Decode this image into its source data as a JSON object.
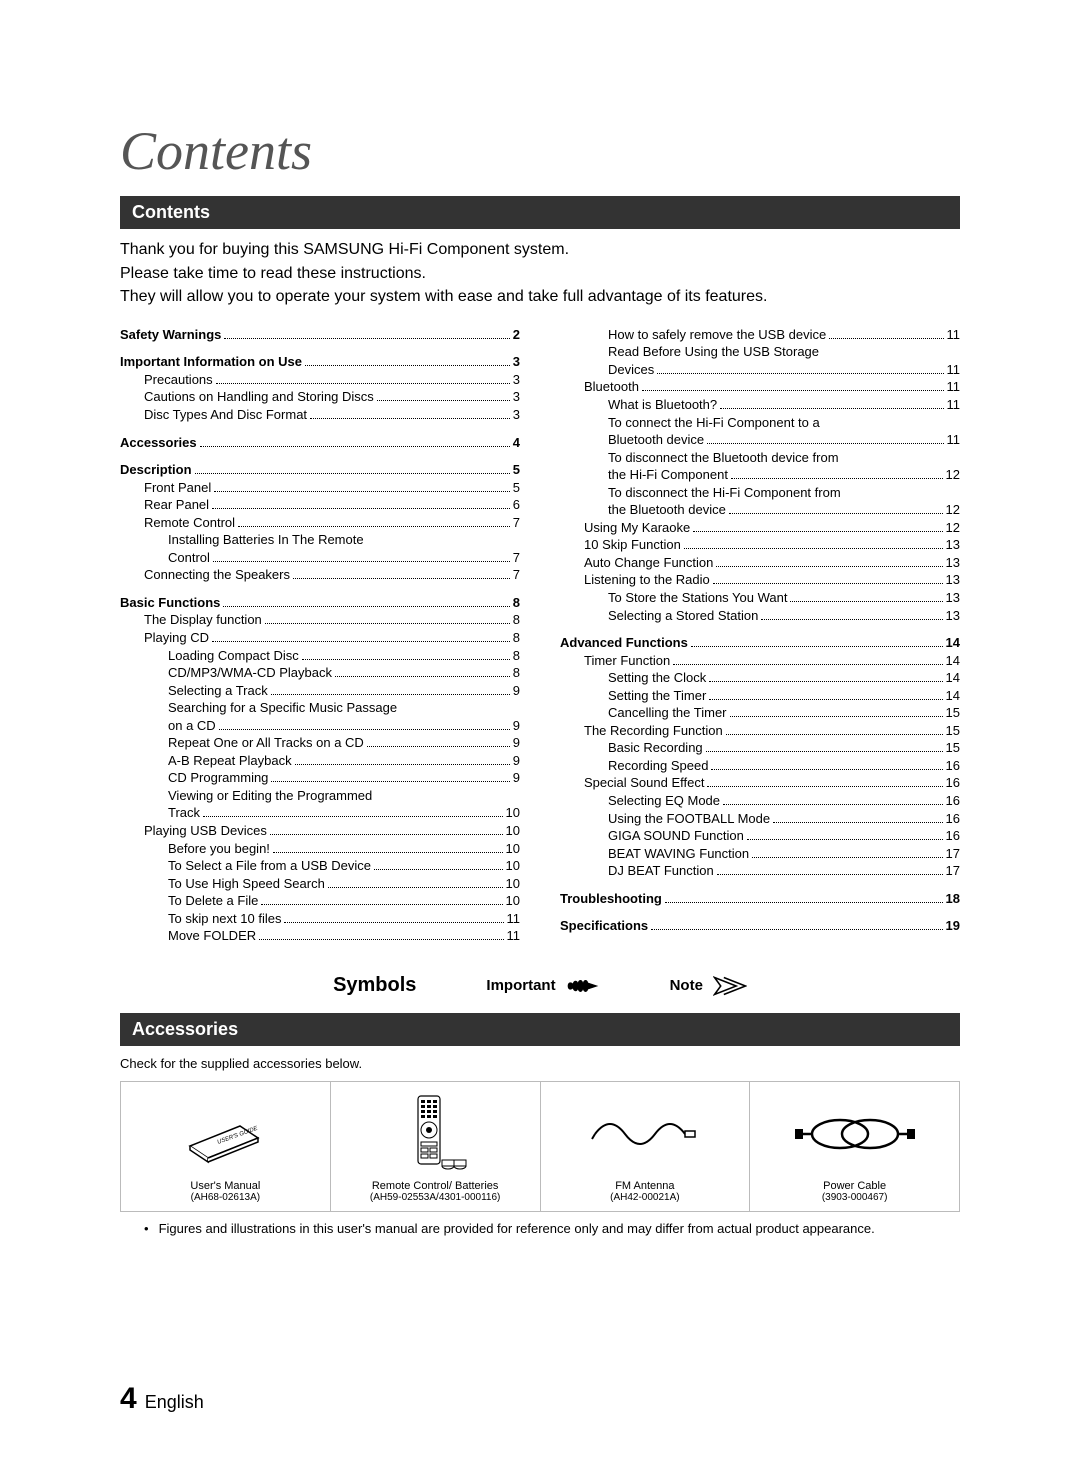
{
  "page_title": "Contents",
  "section_contents_label": "Contents",
  "intro": {
    "l1": "Thank you for buying this SAMSUNG Hi-Fi Component system.",
    "l2": "Please take time to read these instructions.",
    "l3": "They will allow you to operate your system with ease and take full advantage of its features."
  },
  "toc_left": [
    {
      "ind": 0,
      "label": "Safety Warnings",
      "page": "2"
    },
    {
      "ind": 0,
      "label": "Important Information on Use",
      "page": "3"
    },
    {
      "ind": 1,
      "label": "Precautions",
      "page": "3"
    },
    {
      "ind": 1,
      "label": "Cautions on Handling and Storing Discs",
      "page": "3"
    },
    {
      "ind": 1,
      "label": "Disc Types And Disc Format",
      "page": "3"
    },
    {
      "ind": 0,
      "label": "Accessories",
      "page": "4"
    },
    {
      "ind": 0,
      "label": "Description",
      "page": "5"
    },
    {
      "ind": 1,
      "label": "Front Panel",
      "page": "5"
    },
    {
      "ind": 1,
      "label": "Rear Panel",
      "page": "6"
    },
    {
      "ind": 1,
      "label": "Remote Control",
      "page": "7"
    },
    {
      "ind": 2,
      "label": "Installing Batteries In The Remote",
      "nopage": true
    },
    {
      "ind": 2,
      "label": "Control",
      "page": "7"
    },
    {
      "ind": 1,
      "label": "Connecting the Speakers",
      "page": "7"
    },
    {
      "ind": 0,
      "label": "Basic Functions",
      "page": "8"
    },
    {
      "ind": 1,
      "label": "The Display function",
      "page": "8"
    },
    {
      "ind": 1,
      "label": "Playing CD",
      "page": "8"
    },
    {
      "ind": 2,
      "label": "Loading Compact Disc",
      "page": "8"
    },
    {
      "ind": 2,
      "label": "CD/MP3/WMA-CD Playback",
      "page": "8"
    },
    {
      "ind": 2,
      "label": "Selecting a Track",
      "page": "9"
    },
    {
      "ind": 2,
      "label": "Searching for a Specific Music Passage",
      "nopage": true
    },
    {
      "ind": 2,
      "label": "on a CD",
      "page": "9"
    },
    {
      "ind": 2,
      "label": "Repeat One or All Tracks on a CD",
      "page": "9"
    },
    {
      "ind": 2,
      "label": "A-B Repeat Playback",
      "page": "9"
    },
    {
      "ind": 2,
      "label": "CD Programming",
      "page": "9"
    },
    {
      "ind": 2,
      "label": "Viewing or Editing the Programmed",
      "nopage": true
    },
    {
      "ind": 2,
      "label": "Track",
      "page": "10"
    },
    {
      "ind": 1,
      "label": "Playing USB Devices",
      "page": "10"
    },
    {
      "ind": 2,
      "label": "Before you begin!",
      "page": "10"
    },
    {
      "ind": 2,
      "label": "To Select a File from a USB Device",
      "page": "10"
    },
    {
      "ind": 2,
      "label": "To Use High Speed Search",
      "page": "10"
    },
    {
      "ind": 2,
      "label": "To Delete a File",
      "page": "10"
    },
    {
      "ind": 2,
      "label": "To skip next 10 files",
      "page": "11"
    },
    {
      "ind": 2,
      "label": "Move FOLDER",
      "page": "11"
    }
  ],
  "toc_right": [
    {
      "ind": 2,
      "label": "How to safely remove the USB device",
      "page": "11"
    },
    {
      "ind": 2,
      "label": "Read Before Using the USB Storage",
      "nopage": true
    },
    {
      "ind": 2,
      "label": "Devices",
      "page": "11"
    },
    {
      "ind": 1,
      "label": "Bluetooth",
      "page": "11"
    },
    {
      "ind": 2,
      "label": "What is Bluetooth?",
      "page": "11"
    },
    {
      "ind": 2,
      "label": "To connect the Hi-Fi Component to a",
      "nopage": true
    },
    {
      "ind": 2,
      "label": "Bluetooth device",
      "page": "11"
    },
    {
      "ind": 2,
      "label": "To disconnect the Bluetooth device from",
      "nopage": true
    },
    {
      "ind": 2,
      "label": "the Hi-Fi Component",
      "page": "12"
    },
    {
      "ind": 2,
      "label": "To disconnect the Hi-Fi Component from",
      "nopage": true
    },
    {
      "ind": 2,
      "label": "the Bluetooth device",
      "page": "12"
    },
    {
      "ind": 1,
      "label": "Using My Karaoke",
      "page": "12"
    },
    {
      "ind": 1,
      "label": "10 Skip Function",
      "page": "13"
    },
    {
      "ind": 1,
      "label": "Auto Change Function",
      "page": "13"
    },
    {
      "ind": 1,
      "label": "Listening to the Radio",
      "page": "13"
    },
    {
      "ind": 2,
      "label": "To Store the Stations You Want",
      "page": "13"
    },
    {
      "ind": 2,
      "label": "Selecting a Stored Station",
      "page": "13"
    },
    {
      "ind": 0,
      "label": "Advanced Functions",
      "page": "14"
    },
    {
      "ind": 1,
      "label": "Timer Function",
      "page": "14"
    },
    {
      "ind": 2,
      "label": "Setting the Clock",
      "page": "14"
    },
    {
      "ind": 2,
      "label": "Setting the Timer",
      "page": "14"
    },
    {
      "ind": 2,
      "label": "Cancelling the Timer",
      "page": "15"
    },
    {
      "ind": 1,
      "label": "The Recording Function",
      "page": "15"
    },
    {
      "ind": 2,
      "label": "Basic Recording",
      "page": "15"
    },
    {
      "ind": 2,
      "label": "Recording Speed",
      "page": "16"
    },
    {
      "ind": 1,
      "label": "Special Sound Effect",
      "page": "16"
    },
    {
      "ind": 2,
      "label": "Selecting EQ Mode",
      "page": "16"
    },
    {
      "ind": 2,
      "label": "Using the FOOTBALL Mode",
      "page": "16"
    },
    {
      "ind": 2,
      "label": "GIGA SOUND Function",
      "page": "16"
    },
    {
      "ind": 2,
      "label": "BEAT WAVING Function",
      "page": "17"
    },
    {
      "ind": 2,
      "label": "DJ BEAT Function",
      "page": "17"
    },
    {
      "ind": 0,
      "label": "Troubleshooting",
      "page": "18"
    },
    {
      "ind": 0,
      "label": "Specifications",
      "page": "19"
    }
  ],
  "symbols": {
    "title": "Symbols",
    "important": "Important",
    "note": "Note"
  },
  "section_accessories_label": "Accessories",
  "accessories_intro": "Check for the supplied accessories below.",
  "accessories": [
    {
      "label": "User's Manual",
      "code": "(AH68-02613A)"
    },
    {
      "label": "Remote Control/ Batteries",
      "code": "(AH59-02553A/4301-000116)"
    },
    {
      "label": "FM Antenna",
      "code": "(AH42-00021A)"
    },
    {
      "label": "Power Cable",
      "code": "(3903-000467)"
    }
  ],
  "footnote": "Figures and illustrations in this user's manual are provided for reference only and may differ from actual product appearance.",
  "footer": {
    "page": "4",
    "lang": "English"
  },
  "colors": {
    "bar_bg": "#333333",
    "bar_fg": "#ffffff",
    "title": "#555555"
  }
}
